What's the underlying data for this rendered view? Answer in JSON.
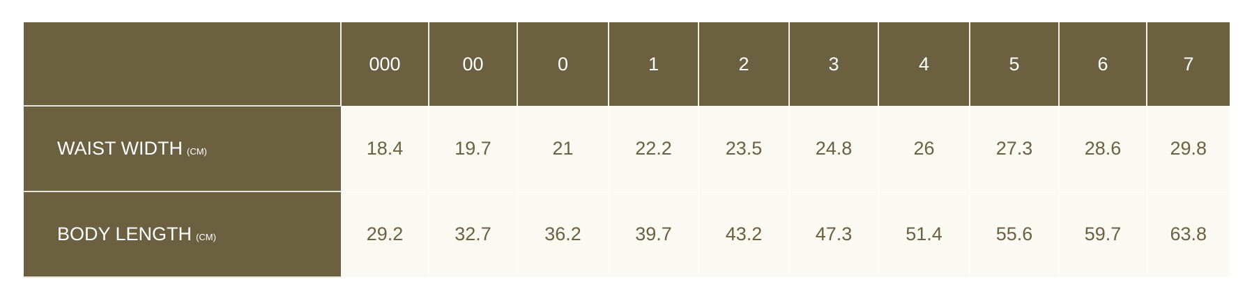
{
  "table": {
    "sizes": [
      "000",
      "00",
      "0",
      "1",
      "2",
      "3",
      "4",
      "5",
      "6",
      "7"
    ],
    "rows": [
      {
        "label": "WAIST WIDTH",
        "unit": "(CM)",
        "values": [
          "18.4",
          "19.7",
          "21",
          "22.2",
          "23.5",
          "24.8",
          "26",
          "27.3",
          "28.6",
          "29.8"
        ]
      },
      {
        "label": "BODY LENGTH",
        "unit": "(CM)",
        "values": [
          "29.2",
          "32.7",
          "36.2",
          "39.7",
          "43.2",
          "47.3",
          "51.4",
          "55.6",
          "59.7",
          "63.8"
        ]
      }
    ]
  },
  "colors": {
    "header_bg": "#6b6040",
    "cell_bg": "#fafaf2",
    "value_text": "#6b6040"
  }
}
